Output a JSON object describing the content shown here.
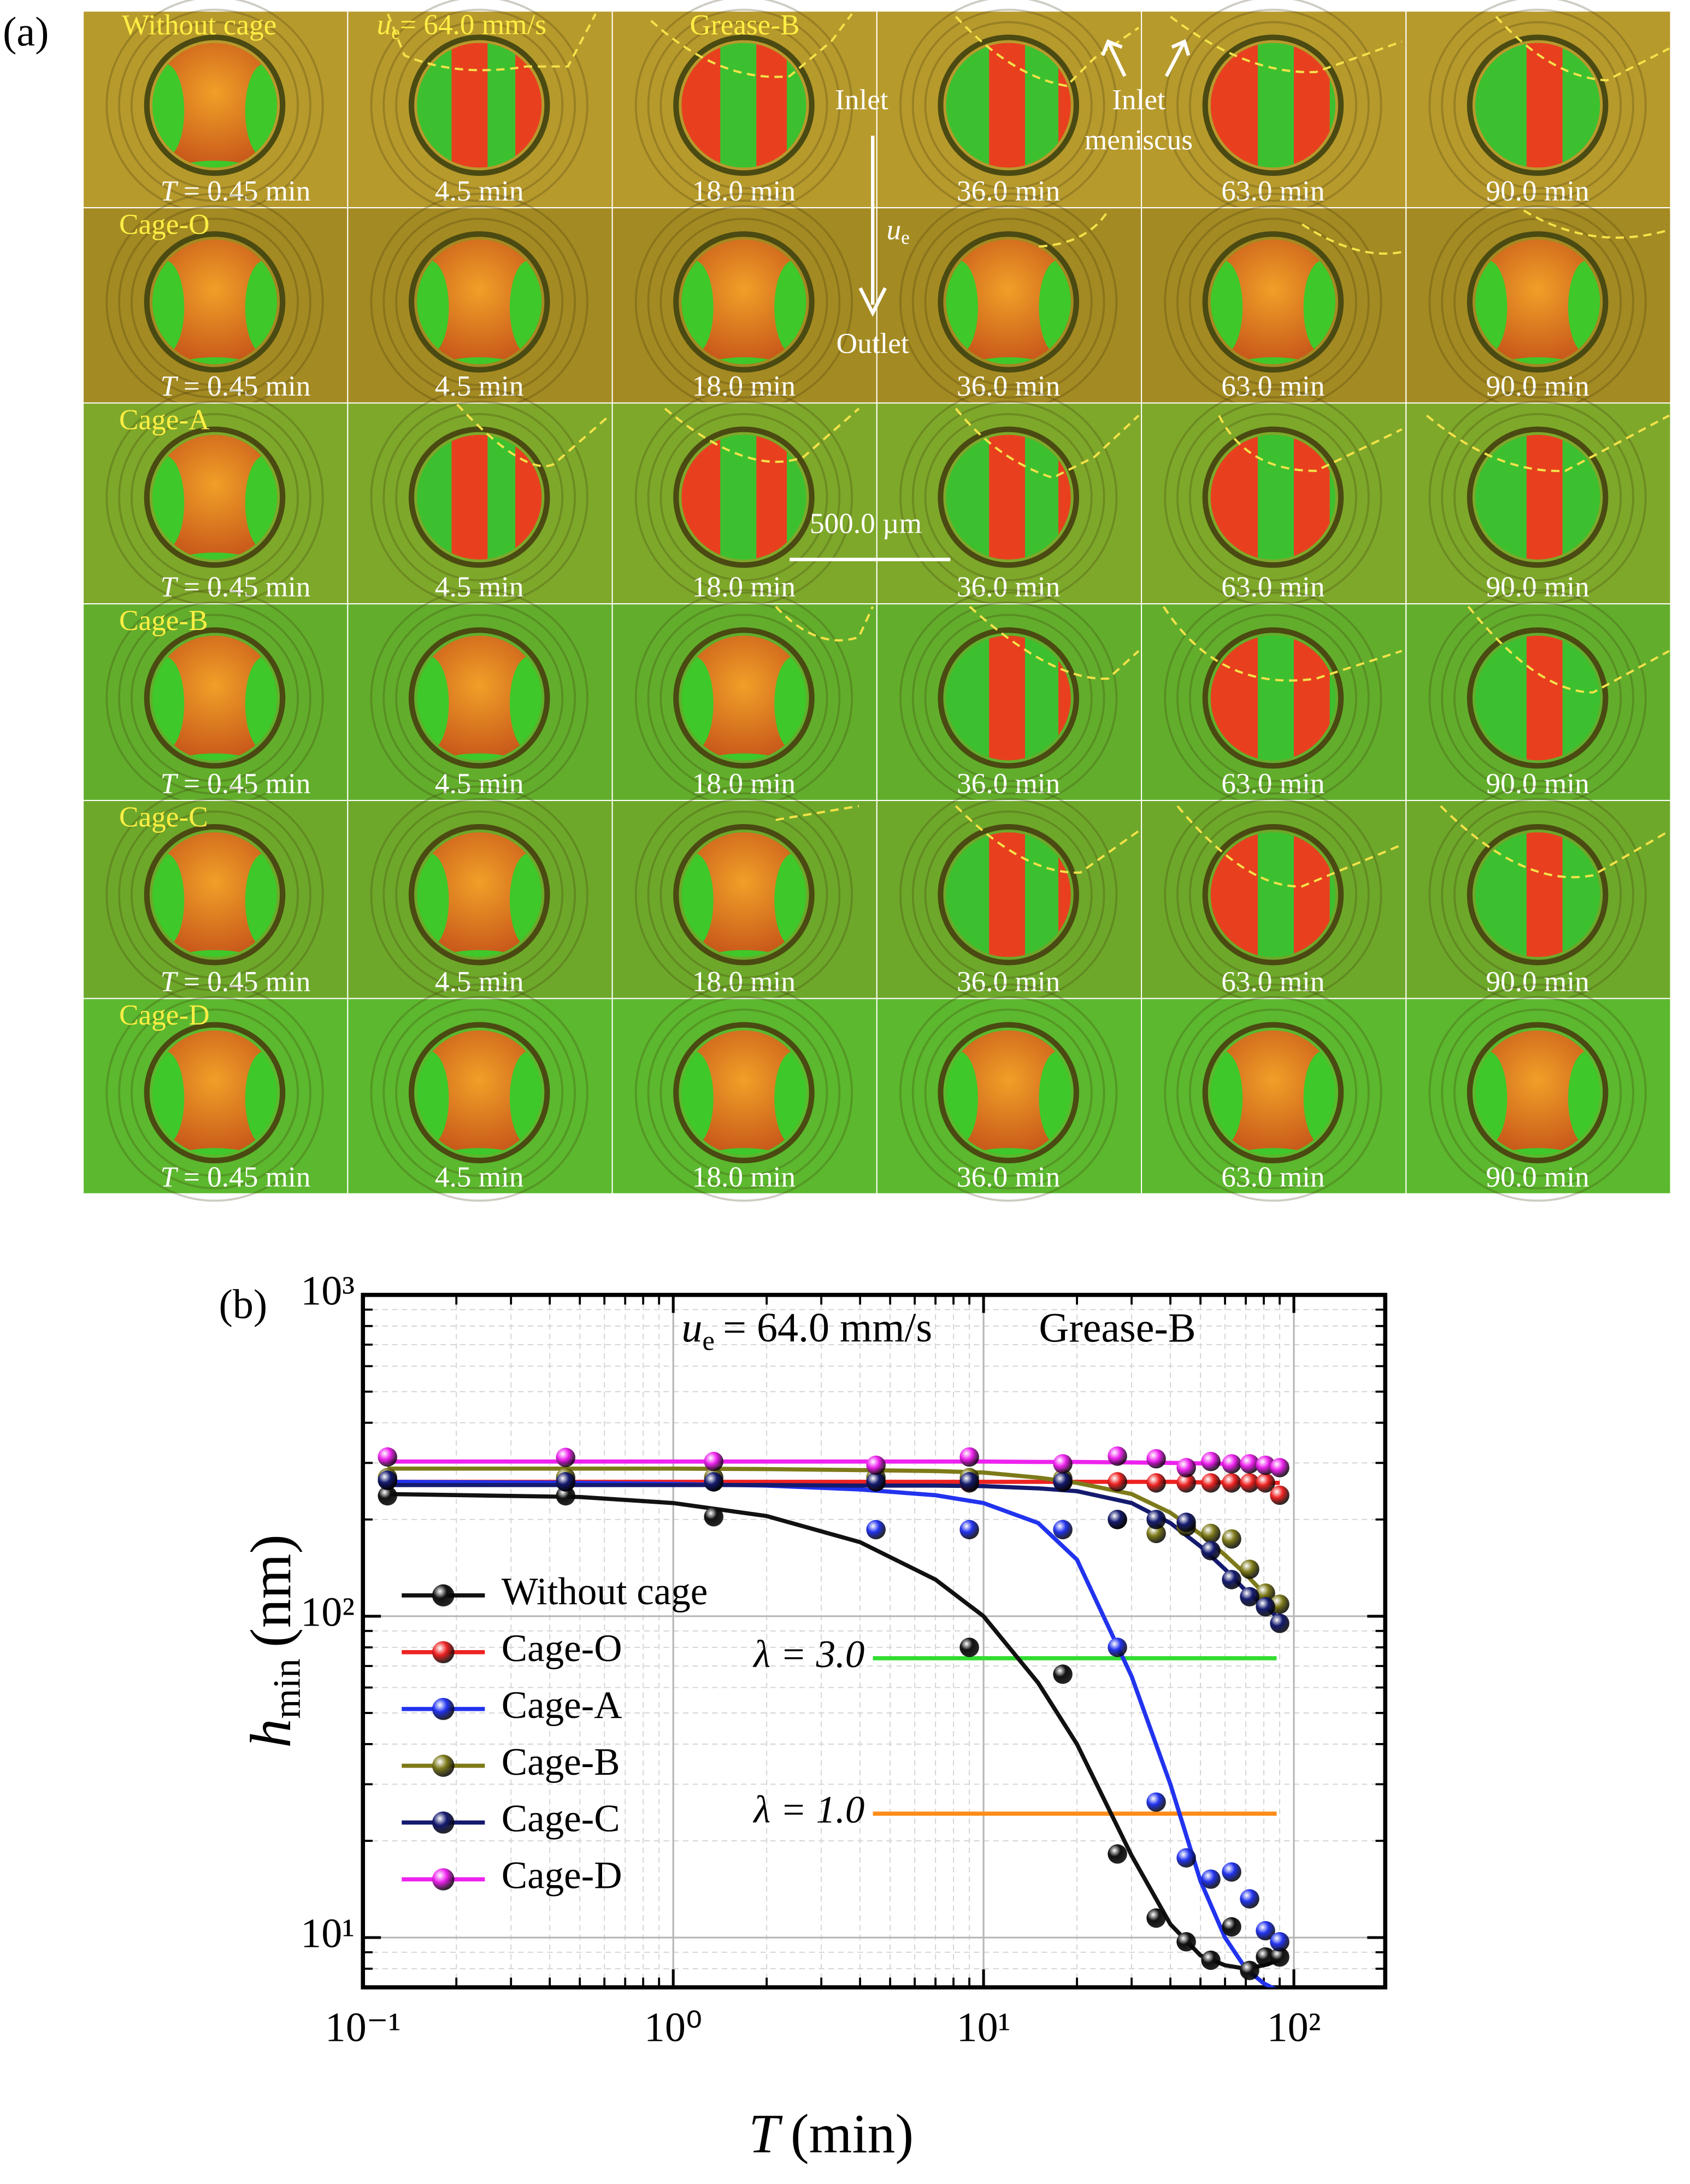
{
  "figure": {
    "panel_a": {
      "label": "(a)",
      "row_labels": [
        "Without cage",
        "Cage-O",
        "Cage-A",
        "Cage-B",
        "Cage-C",
        "Cage-D"
      ],
      "first_time_symbol": "T",
      "time_labels": [
        "= 0.45 min",
        "4.5 min",
        "18.0 min",
        "36.0 min",
        "63.0 min",
        "90.0 min"
      ],
      "speed": {
        "symbol": "u",
        "subscript": "e",
        "text": "= 64.0 mm/s"
      },
      "grease": "Grease-B",
      "inlet": "Inlet",
      "outlet": "Outlet",
      "flow": {
        "symbol": "u",
        "subscript": "e"
      },
      "meniscus": [
        "Inlet",
        "meniscus"
      ],
      "scale_bar": "500.0 µm"
    }
  },
  "chart_data": {
    "type": "scatter",
    "panel_label": "(b)",
    "x_label": {
      "symbol": "T",
      "unit": "(min)"
    },
    "y_label": {
      "symbol": "h",
      "subscript": "min",
      "unit": "(nm)"
    },
    "condition": {
      "symbol": "u",
      "subscript": "e",
      "text": "= 64.0 mm/s"
    },
    "grease": "Grease-B",
    "x_scale": "log",
    "y_scale": "log",
    "xlim": [
      0.1,
      197
    ],
    "ylim": [
      7,
      1000
    ],
    "xticks": [
      {
        "value": 0.1,
        "label": "10⁻¹"
      },
      {
        "value": 1,
        "label": "10⁰"
      },
      {
        "value": 10,
        "label": "10¹"
      },
      {
        "value": 100,
        "label": "10²"
      }
    ],
    "yticks": [
      {
        "value": 10,
        "label": "10¹"
      },
      {
        "value": 100,
        "label": "10²"
      },
      {
        "value": 1000,
        "label": "10³"
      }
    ],
    "grid": true,
    "legend": "lower left",
    "reference_lines": [
      {
        "label": "λ = 3.0",
        "value": 74,
        "x": [
          4.4,
          88
        ],
        "color": "#33dd33"
      },
      {
        "label": "λ = 1.0",
        "value": 24.3,
        "x": [
          4.4,
          88
        ],
        "color": "#ff8c1a"
      }
    ],
    "x": [
      0.12,
      0.45,
      1.35,
      4.5,
      9,
      18,
      27,
      36,
      45,
      54,
      63,
      72,
      81,
      90
    ],
    "fit_x": [
      0.12,
      0.5,
      1,
      2,
      4,
      7,
      10,
      15,
      20,
      30,
      40,
      50,
      60,
      70,
      80,
      90
    ],
    "series": [
      {
        "name": "Without cage",
        "color": "#111111",
        "values": [
          237,
          237,
          204,
          null,
          80,
          66,
          18.2,
          11.5,
          9.7,
          8.5,
          10.8,
          7.9,
          8.7,
          8.7
        ],
        "fit": [
          240,
          235,
          225,
          205,
          170,
          130,
          100,
          62,
          40,
          18,
          11,
          8.8,
          8.2,
          8.0,
          8.2,
          8.5
        ]
      },
      {
        "name": "Cage-O",
        "color": "#ee2222",
        "values": [
          265,
          262,
          262,
          262,
          260,
          262,
          262,
          260,
          260,
          260,
          260,
          260,
          260,
          238
        ],
        "fit": [
          262,
          262,
          262,
          262,
          262,
          262,
          262,
          262,
          262,
          262,
          262,
          261,
          261,
          261,
          260,
          260
        ]
      },
      {
        "name": "Cage-A",
        "color": "#2233ee",
        "values": [
          265,
          262,
          262,
          186,
          186,
          186,
          80,
          26.4,
          17.7,
          15.2,
          16,
          13.2,
          10.5,
          9.7
        ],
        "fit": [
          262,
          260,
          258,
          255,
          248,
          238,
          225,
          195,
          150,
          65,
          30,
          15,
          10,
          8,
          7.2,
          6.8
        ]
      },
      {
        "name": "Cage-B",
        "color": "#7d7a1a",
        "values": [
          270,
          270,
          270,
          270,
          270,
          268,
          200,
          181,
          190,
          181,
          174,
          140,
          118,
          109
        ],
        "fit": [
          288,
          288,
          288,
          287,
          285,
          283,
          280,
          270,
          260,
          240,
          210,
          180,
          155,
          135,
          118,
          105
        ]
      },
      {
        "name": "Cage-C",
        "color": "#141a6e",
        "values": [
          265,
          262,
          262,
          262,
          262,
          262,
          200,
          200,
          196,
          160,
          130,
          115,
          107,
          95
        ],
        "fit": [
          256,
          256,
          256,
          256,
          255,
          255,
          254,
          250,
          245,
          225,
          195,
          165,
          140,
          120,
          108,
          98
        ]
      },
      {
        "name": "Cage-D",
        "color": "#ee22ee",
        "values": [
          313,
          312,
          303,
          295,
          313,
          298,
          315,
          309,
          290,
          303,
          298,
          298,
          295,
          290
        ],
        "fit": [
          303,
          303,
          303,
          303,
          303,
          303,
          303,
          302,
          302,
          301,
          300,
          299,
          298,
          297,
          297,
          296
        ]
      }
    ]
  }
}
